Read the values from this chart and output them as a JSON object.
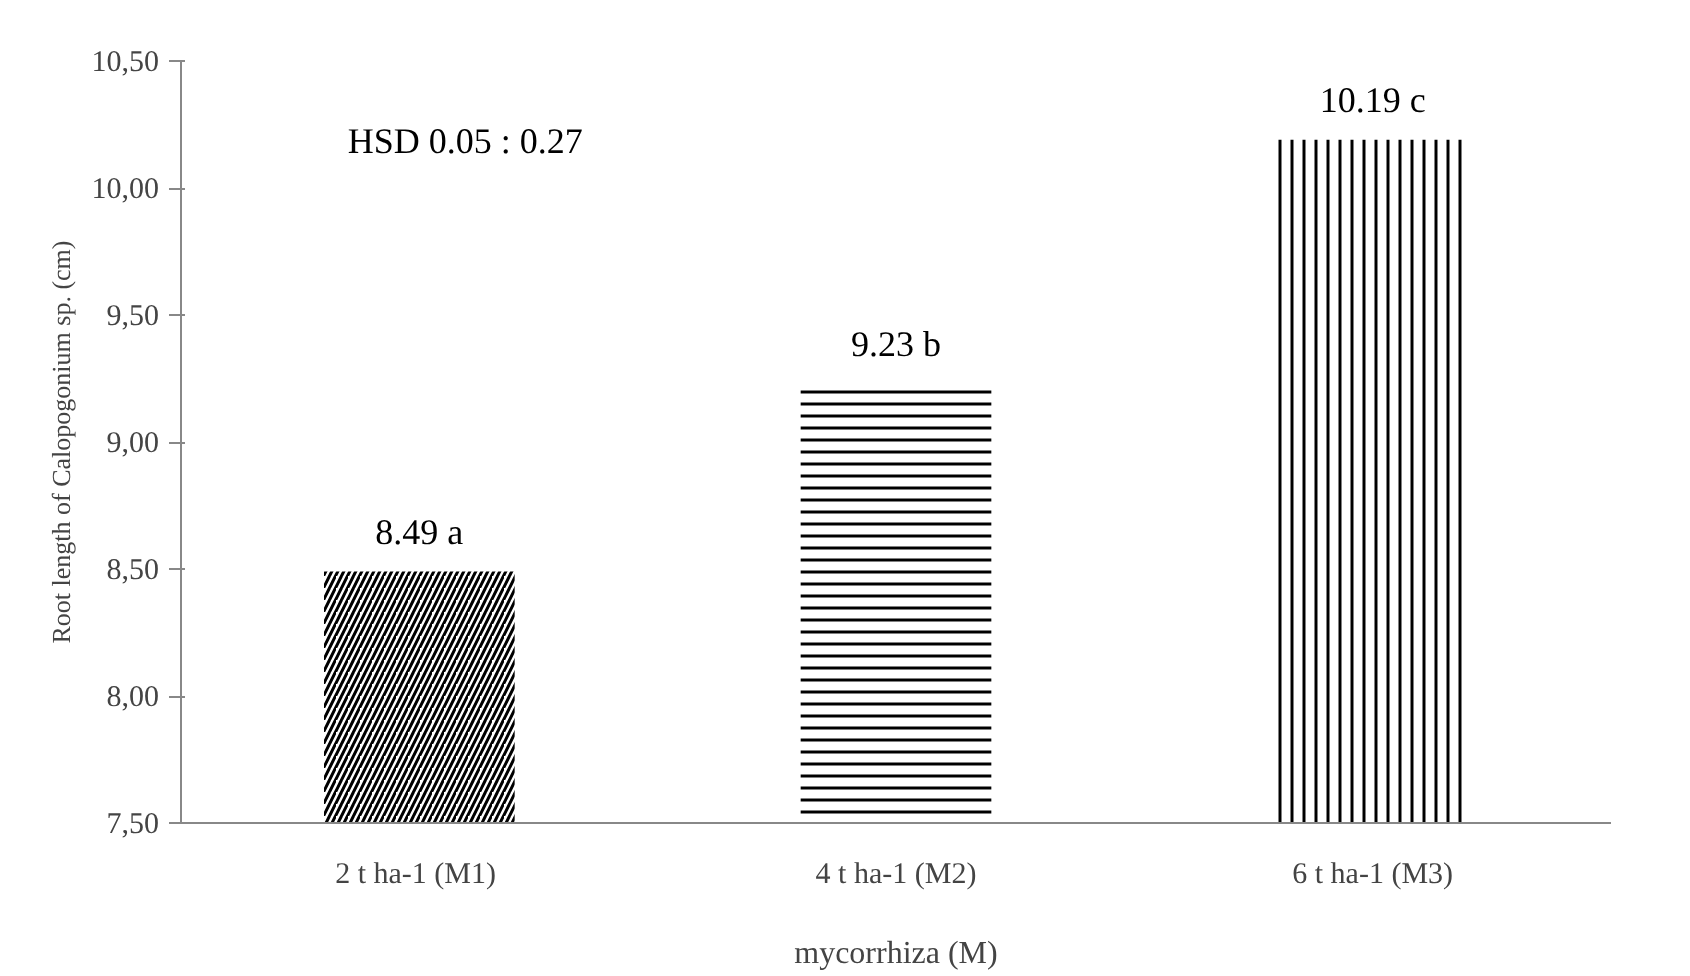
{
  "chart_data": {
    "type": "bar",
    "categories": [
      "2 t ha-1  (M1)",
      "4 t ha-1 (M2)",
      "6 t ha-1 (M3)"
    ],
    "values": [
      8.49,
      9.23,
      10.19
    ],
    "value_labels": [
      "8.49 a",
      "9.23 b",
      "10.19 c"
    ],
    "color": "#000000",
    "ylim": [
      7.5,
      10.5
    ],
    "yticks": [
      {
        "value": 7.5,
        "label": "7,50"
      },
      {
        "value": 8.0,
        "label": "8,00"
      },
      {
        "value": 8.5,
        "label": "8,50"
      },
      {
        "value": 9.0,
        "label": "9,00"
      },
      {
        "value": 9.5,
        "label": "9,50"
      },
      {
        "value": 10.0,
        "label": "10,00"
      },
      {
        "value": 10.5,
        "label": "10,50"
      }
    ],
    "ylabel": "Root length of Calopogonium sp. (cm)",
    "xlabel": "mycorrhiza (M)",
    "annotations": [
      "HSD 0.05 : 0.27"
    ],
    "grid": false
  }
}
